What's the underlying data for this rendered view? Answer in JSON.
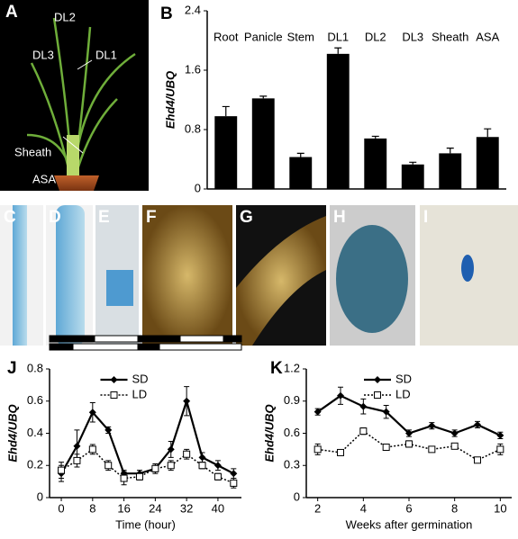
{
  "photo_panels": [
    {
      "label": "A",
      "annotations": [
        "DL2",
        "DL3",
        "DL1",
        "Sheath",
        "ASA"
      ]
    },
    {
      "label": "C"
    },
    {
      "label": "D"
    },
    {
      "label": "E"
    },
    {
      "label": "F"
    },
    {
      "label": "G"
    },
    {
      "label": "H"
    },
    {
      "label": "I"
    }
  ],
  "chart_data": [
    {
      "type": "bar",
      "panel": "B",
      "ylabel": "Ehd4/UBQ",
      "categories": [
        "Root",
        "Panicle",
        "Stem",
        "DL1",
        "DL2",
        "DL3",
        "Sheath",
        "ASA"
      ],
      "values": [
        0.98,
        1.22,
        0.43,
        1.82,
        0.68,
        0.33,
        0.48,
        0.7
      ],
      "errors": [
        0.13,
        0.03,
        0.05,
        0.08,
        0.03,
        0.03,
        0.07,
        0.11
      ],
      "color": "#000000",
      "ylim": [
        0,
        2.4
      ],
      "yticks": [
        0,
        0.8,
        1.6,
        2.4
      ]
    },
    {
      "type": "line",
      "panel": "J",
      "ylabel": "Ehd4/UBQ",
      "xlabel": "Time (hour)",
      "x": [
        0,
        4,
        8,
        12,
        16,
        20,
        24,
        28,
        32,
        36,
        40,
        44
      ],
      "series": [
        {
          "name": "SD",
          "color": "#000000",
          "line_style": "solid",
          "marker": "diamond",
          "values": [
            0.15,
            0.32,
            0.53,
            0.42,
            0.15,
            0.15,
            0.18,
            0.3,
            0.6,
            0.25,
            0.2,
            0.15
          ],
          "errors": [
            0.05,
            0.1,
            0.06,
            0.02,
            0.02,
            0.02,
            0.03,
            0.05,
            0.09,
            0.03,
            0.03,
            0.03
          ]
        },
        {
          "name": "LD",
          "color": "#000000",
          "line_style": "dotted",
          "marker": "square",
          "values": [
            0.17,
            0.23,
            0.3,
            0.2,
            0.12,
            0.13,
            0.18,
            0.2,
            0.27,
            0.2,
            0.13,
            0.09
          ],
          "errors": [
            0.05,
            0.04,
            0.03,
            0.03,
            0.04,
            0.02,
            0.02,
            0.03,
            0.03,
            0.02,
            0.02,
            0.03
          ]
        }
      ],
      "xlim": [
        -3,
        46
      ],
      "xticks": [
        0,
        8,
        16,
        24,
        32,
        40
      ],
      "ylim": [
        0,
        0.8
      ],
      "yticks": [
        0,
        0.2,
        0.4,
        0.6,
        0.8
      ]
    },
    {
      "type": "line",
      "panel": "K",
      "ylabel": "Ehd4/UBQ",
      "xlabel": "Weeks after germination",
      "x": [
        2,
        3,
        4,
        5,
        6,
        7,
        8,
        9,
        10
      ],
      "series": [
        {
          "name": "SD",
          "color": "#000000",
          "line_style": "solid",
          "marker": "diamond",
          "values": [
            0.8,
            0.95,
            0.85,
            0.8,
            0.6,
            0.67,
            0.6,
            0.68,
            0.58
          ],
          "errors": [
            0.03,
            0.08,
            0.07,
            0.06,
            0.03,
            0.03,
            0.03,
            0.03,
            0.03
          ]
        },
        {
          "name": "LD",
          "color": "#000000",
          "line_style": "dotted",
          "marker": "square",
          "values": [
            0.45,
            0.42,
            0.62,
            0.47,
            0.5,
            0.45,
            0.48,
            0.35,
            0.45
          ],
          "errors": [
            0.05,
            0.02,
            0.03,
            0.02,
            0.03,
            0.02,
            0.02,
            0.02,
            0.05
          ]
        }
      ],
      "xlim": [
        1.5,
        10.5
      ],
      "xticks": [
        2,
        4,
        6,
        8,
        10
      ],
      "ylim": [
        0,
        1.2
      ],
      "yticks": [
        0,
        0.3,
        0.6,
        0.9,
        1.2
      ]
    }
  ]
}
